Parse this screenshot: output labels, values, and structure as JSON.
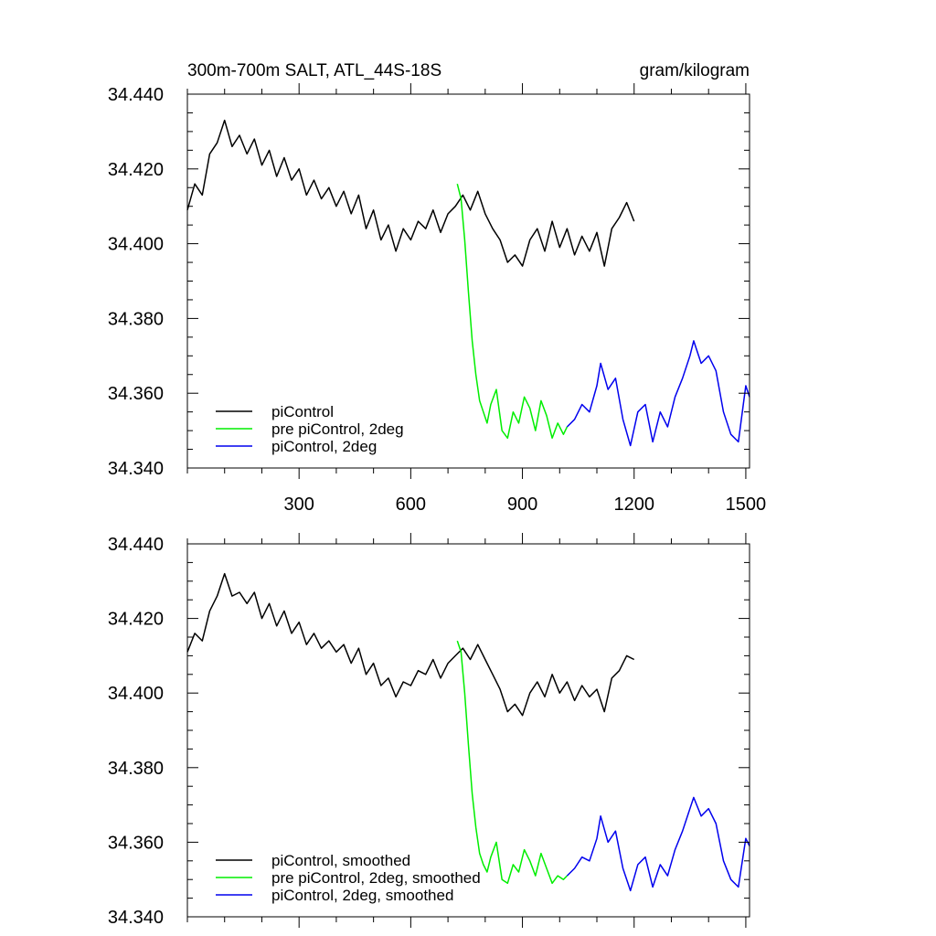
{
  "chart_data": [
    {
      "type": "line",
      "title": "300m-700m SALT, ATL_44S-18S",
      "units": "gram/kilogram",
      "xlim": [
        0,
        1510
      ],
      "ylim": [
        34.34,
        34.44
      ],
      "xticks": [
        {
          "v": 300,
          "label": "300"
        },
        {
          "v": 600,
          "label": "600"
        },
        {
          "v": 900,
          "label": "900"
        },
        {
          "v": 1200,
          "label": "1200"
        },
        {
          "v": 1500,
          "label": "1500"
        }
      ],
      "yticks": [
        {
          "v": 34.34,
          "label": "34.340"
        },
        {
          "v": 34.36,
          "label": "34.360"
        },
        {
          "v": 34.38,
          "label": "34.380"
        },
        {
          "v": 34.4,
          "label": "34.400"
        },
        {
          "v": 34.42,
          "label": "34.420"
        },
        {
          "v": 34.44,
          "label": "34.440"
        }
      ],
      "show_xtick_labels": true,
      "legend_position": "bottom-left",
      "series": [
        {
          "name": "piControl",
          "color": "#000000",
          "x": [
            0,
            20,
            40,
            60,
            80,
            100,
            120,
            140,
            160,
            180,
            200,
            220,
            240,
            260,
            280,
            300,
            320,
            340,
            360,
            380,
            400,
            420,
            440,
            460,
            480,
            500,
            520,
            540,
            560,
            580,
            600,
            620,
            640,
            660,
            680,
            700,
            720,
            740,
            760,
            780,
            800,
            820,
            840,
            860,
            880,
            900,
            920,
            940,
            960,
            980,
            1000,
            1020,
            1040,
            1060,
            1080,
            1100,
            1120,
            1140,
            1160,
            1180,
            1200
          ],
          "y": [
            34.409,
            34.416,
            34.413,
            34.424,
            34.427,
            34.433,
            34.426,
            34.429,
            34.424,
            34.428,
            34.421,
            34.425,
            34.418,
            34.423,
            34.417,
            34.42,
            34.413,
            34.417,
            34.412,
            34.415,
            34.41,
            34.414,
            34.408,
            34.413,
            34.404,
            34.409,
            34.401,
            34.405,
            34.398,
            34.404,
            34.401,
            34.406,
            34.404,
            34.409,
            34.403,
            34.408,
            34.41,
            34.413,
            34.409,
            34.414,
            34.408,
            34.404,
            34.401,
            34.395,
            34.397,
            34.394,
            34.401,
            34.404,
            34.398,
            34.406,
            34.399,
            34.404,
            34.397,
            34.402,
            34.398,
            34.403,
            34.394,
            34.404,
            34.407,
            34.411,
            34.406
          ]
        },
        {
          "name": "pre piControl, 2deg",
          "color": "#00ee00",
          "x": [
            725,
            735,
            745,
            755,
            765,
            775,
            785,
            795,
            805,
            815,
            830,
            845,
            860,
            875,
            890,
            905,
            920,
            935,
            950,
            965,
            980,
            995,
            1010,
            1020
          ],
          "y": [
            34.416,
            34.412,
            34.401,
            34.387,
            34.374,
            34.365,
            34.358,
            34.355,
            34.352,
            34.357,
            34.361,
            34.35,
            34.348,
            34.355,
            34.352,
            34.359,
            34.356,
            34.35,
            34.358,
            34.354,
            34.348,
            34.352,
            34.349,
            34.351
          ]
        },
        {
          "name": "piControl, 2deg",
          "color": "#0000ee",
          "x": [
            1020,
            1040,
            1060,
            1080,
            1100,
            1110,
            1130,
            1150,
            1170,
            1190,
            1210,
            1230,
            1250,
            1270,
            1290,
            1310,
            1330,
            1350,
            1360,
            1380,
            1400,
            1420,
            1440,
            1460,
            1480,
            1500,
            1510
          ],
          "y": [
            34.351,
            34.353,
            34.357,
            34.355,
            34.362,
            34.368,
            34.361,
            34.364,
            34.353,
            34.346,
            34.355,
            34.357,
            34.347,
            34.355,
            34.351,
            34.359,
            34.364,
            34.37,
            34.374,
            34.368,
            34.37,
            34.366,
            34.355,
            34.349,
            34.347,
            34.362,
            34.359
          ]
        }
      ]
    },
    {
      "type": "line",
      "title": "",
      "units": "",
      "xlim": [
        0,
        1510
      ],
      "ylim": [
        34.34,
        34.44
      ],
      "xticks": [
        {
          "v": 300,
          "label": ""
        },
        {
          "v": 600,
          "label": ""
        },
        {
          "v": 900,
          "label": ""
        },
        {
          "v": 1200,
          "label": ""
        },
        {
          "v": 1500,
          "label": ""
        }
      ],
      "yticks": [
        {
          "v": 34.34,
          "label": "34.340"
        },
        {
          "v": 34.36,
          "label": "34.360"
        },
        {
          "v": 34.38,
          "label": "34.380"
        },
        {
          "v": 34.4,
          "label": "34.400"
        },
        {
          "v": 34.42,
          "label": "34.420"
        },
        {
          "v": 34.44,
          "label": "34.440"
        }
      ],
      "show_xtick_labels": false,
      "legend_position": "bottom-left",
      "series": [
        {
          "name": "piControl, smoothed",
          "color": "#000000",
          "x": [
            0,
            20,
            40,
            60,
            80,
            100,
            120,
            140,
            160,
            180,
            200,
            220,
            240,
            260,
            280,
            300,
            320,
            340,
            360,
            380,
            400,
            420,
            440,
            460,
            480,
            500,
            520,
            540,
            560,
            580,
            600,
            620,
            640,
            660,
            680,
            700,
            720,
            740,
            760,
            780,
            800,
            820,
            840,
            860,
            880,
            900,
            920,
            940,
            960,
            980,
            1000,
            1020,
            1040,
            1060,
            1080,
            1100,
            1120,
            1140,
            1160,
            1180,
            1200
          ],
          "y": [
            34.411,
            34.416,
            34.414,
            34.422,
            34.426,
            34.432,
            34.426,
            34.427,
            34.424,
            34.427,
            34.42,
            34.424,
            34.418,
            34.422,
            34.416,
            34.419,
            34.413,
            34.416,
            34.412,
            34.414,
            34.411,
            34.413,
            34.408,
            34.412,
            34.405,
            34.408,
            34.402,
            34.404,
            34.399,
            34.403,
            34.402,
            34.406,
            34.405,
            34.409,
            34.404,
            34.408,
            34.41,
            34.412,
            34.409,
            34.413,
            34.409,
            34.405,
            34.401,
            34.395,
            34.397,
            34.394,
            34.4,
            34.403,
            34.399,
            34.405,
            34.4,
            34.403,
            34.398,
            34.402,
            34.399,
            34.401,
            34.395,
            34.404,
            34.406,
            34.41,
            34.409
          ]
        },
        {
          "name": "pre piControl, 2deg, smoothed",
          "color": "#00ee00",
          "x": [
            725,
            735,
            745,
            755,
            765,
            775,
            785,
            795,
            805,
            815,
            830,
            845,
            860,
            875,
            890,
            905,
            920,
            935,
            950,
            965,
            980,
            995,
            1010,
            1020
          ],
          "y": [
            34.414,
            34.411,
            34.4,
            34.386,
            34.373,
            34.364,
            34.357,
            34.354,
            34.352,
            34.356,
            34.36,
            34.35,
            34.349,
            34.354,
            34.352,
            34.358,
            34.355,
            34.351,
            34.357,
            34.353,
            34.349,
            34.351,
            34.35,
            34.351
          ]
        },
        {
          "name": "piControl, 2deg, smoothed",
          "color": "#0000ee",
          "x": [
            1020,
            1040,
            1060,
            1080,
            1100,
            1110,
            1130,
            1150,
            1170,
            1190,
            1210,
            1230,
            1250,
            1270,
            1290,
            1310,
            1330,
            1350,
            1360,
            1380,
            1400,
            1420,
            1440,
            1460,
            1480,
            1500,
            1510
          ],
          "y": [
            34.351,
            34.353,
            34.356,
            34.355,
            34.361,
            34.367,
            34.36,
            34.363,
            34.353,
            34.347,
            34.354,
            34.356,
            34.348,
            34.354,
            34.351,
            34.358,
            34.363,
            34.369,
            34.372,
            34.367,
            34.369,
            34.365,
            34.355,
            34.35,
            34.348,
            34.361,
            34.359
          ]
        }
      ]
    }
  ]
}
